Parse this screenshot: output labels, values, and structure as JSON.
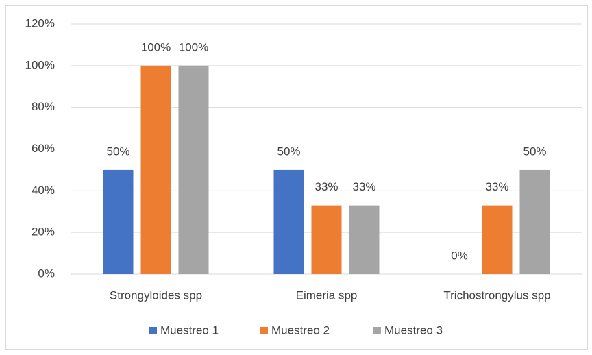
{
  "chart_data": {
    "type": "bar",
    "categories": [
      "Strongyloides spp",
      "Eimeria spp",
      "Trichostrongylus spp"
    ],
    "series": [
      {
        "name": "Muestreo 1",
        "color": "#4472c4",
        "values": [
          50,
          50,
          0
        ],
        "value_labels": [
          "50%",
          "50%",
          "0%"
        ]
      },
      {
        "name": "Muestreo 2",
        "color": "#ed7d31",
        "values": [
          100,
          33,
          33
        ],
        "value_labels": [
          "100%",
          "33%",
          "33%"
        ]
      },
      {
        "name": "Muestreo 3",
        "color": "#a5a5a5",
        "values": [
          100,
          33,
          50
        ],
        "value_labels": [
          "100%",
          "33%",
          "50%"
        ]
      }
    ],
    "ylim": [
      0,
      120
    ],
    "yticks": [
      {
        "value": 0,
        "label": "0%"
      },
      {
        "value": 20,
        "label": "20%"
      },
      {
        "value": 40,
        "label": "40%"
      },
      {
        "value": 60,
        "label": "60%"
      },
      {
        "value": 80,
        "label": "80%"
      },
      {
        "value": 100,
        "label": "100%"
      },
      {
        "value": 120,
        "label": "120%"
      }
    ],
    "grid": true,
    "legend": "bottom"
  }
}
